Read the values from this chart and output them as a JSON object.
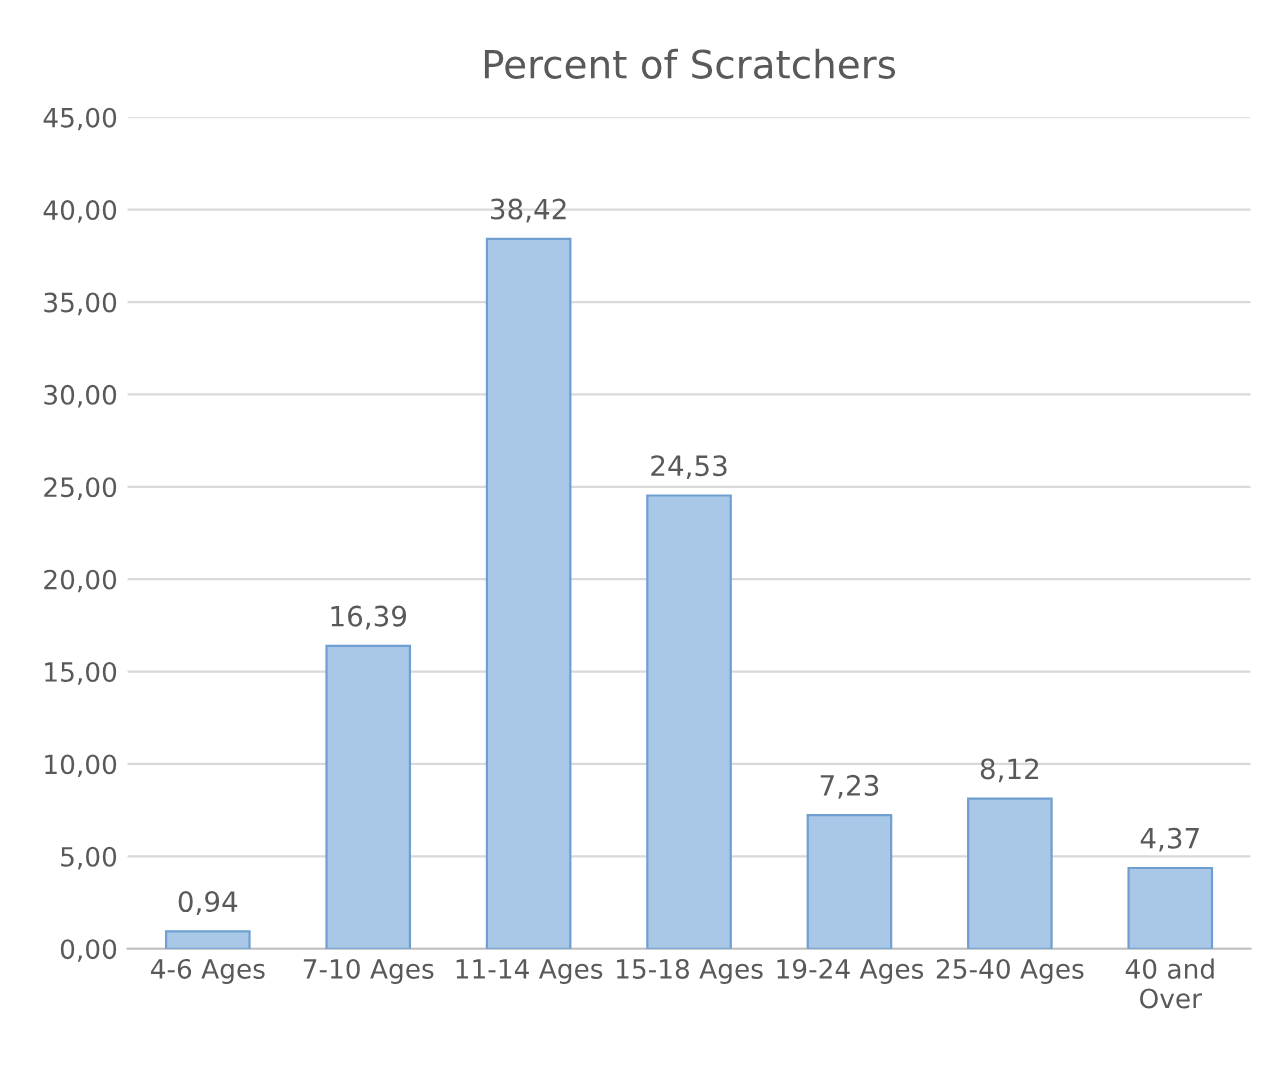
{
  "chart_data": {
    "type": "bar",
    "title": "Percent of Scratchers",
    "categories": [
      "4-6 Ages",
      "7-10 Ages",
      "11-14 Ages",
      "15-18 Ages",
      "19-24 Ages",
      "25-40 Ages",
      "40 and Over"
    ],
    "values": [
      0.94,
      16.39,
      38.42,
      24.53,
      7.23,
      8.12,
      4.37
    ],
    "value_labels": [
      "0,94",
      "16,39",
      "38,42",
      "24,53",
      "7,23",
      "8,12",
      "4,37"
    ],
    "color": "#a9c8e8",
    "ylim": [
      0,
      45
    ],
    "yticks": [
      {
        "value": 0,
        "label": "0,00"
      },
      {
        "value": 5,
        "label": "5,00"
      },
      {
        "value": 10,
        "label": "10,00"
      },
      {
        "value": 15,
        "label": "15,00"
      },
      {
        "value": 20,
        "label": "20,00"
      },
      {
        "value": 25,
        "label": "25,00"
      },
      {
        "value": 30,
        "label": "30,00"
      },
      {
        "value": 35,
        "label": "35,00"
      },
      {
        "value": 40,
        "label": "40,00"
      },
      {
        "value": 45,
        "label": "45,00"
      }
    ],
    "grid": "y"
  }
}
